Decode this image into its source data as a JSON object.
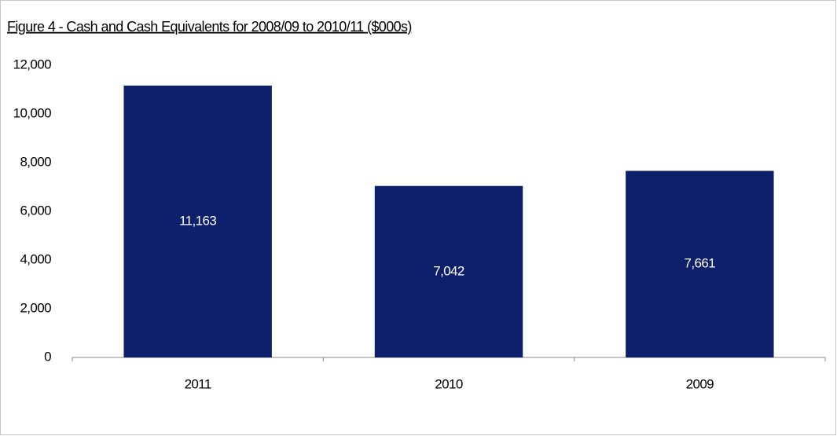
{
  "chart_data": {
    "type": "bar",
    "title": "Figure 4 - Cash and Cash Equivalents for 2008/09 to 2010/11 ($000s)",
    "categories": [
      "2011",
      "2010",
      "2009"
    ],
    "values": [
      11163,
      7042,
      7661
    ],
    "value_labels": [
      "11,163",
      "7,042",
      "7,661"
    ],
    "color": "#0e1f6b",
    "ylim": [
      0,
      12000
    ],
    "yticks": [
      0,
      {
        "value": 2000,
        "label": "2,000"
      },
      {
        "value": 4000,
        "label": "4,000"
      },
      {
        "value": 6000,
        "label": "6,000"
      },
      {
        "value": 8000,
        "label": "8,000"
      },
      {
        "value": 10000,
        "label": "10,000"
      },
      {
        "value": 12000,
        "label": "12,000"
      }
    ],
    "grid": false
  }
}
